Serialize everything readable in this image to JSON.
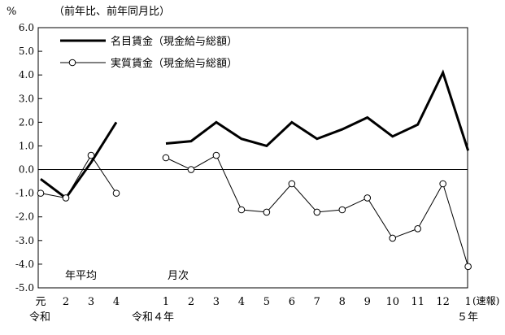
{
  "chart_data": {
    "type": "line",
    "unit_label": "%",
    "unit_note": "（前年比、前年同月比）",
    "ylim": [
      -5.0,
      6.0
    ],
    "y_ticks": [
      "6.0",
      "5.0",
      "4.0",
      "3.0",
      "2.0",
      "1.0",
      "0.0",
      "-1.0",
      "-2.0",
      "-3.0",
      "-4.0",
      "-5.0"
    ],
    "grid": false,
    "legend_position": "top-left",
    "panels": [
      {
        "name": "年平均",
        "categories": [
          "元",
          "2",
          "3",
          "4"
        ],
        "era_label": "令和",
        "series": [
          {
            "name": "名目賃金（現金給与総額）",
            "values": [
              -0.4,
              -1.2,
              0.3,
              2.0
            ]
          },
          {
            "name": "実質賃金（現金給与総額）",
            "values": [
              -1.0,
              -1.2,
              0.6,
              -1.0
            ]
          }
        ]
      },
      {
        "name": "月次",
        "categories": [
          "1",
          "2",
          "3",
          "4",
          "5",
          "6",
          "7",
          "8",
          "9",
          "10",
          "11",
          "12",
          "1"
        ],
        "era_label": "令和４年",
        "era_label_end": "５年",
        "last_note": "(速報)",
        "series": [
          {
            "name": "名目賃金（現金給与総額）",
            "values": [
              1.1,
              1.2,
              2.0,
              1.3,
              1.0,
              2.0,
              1.3,
              1.7,
              2.2,
              1.4,
              1.9,
              4.1,
              0.8
            ]
          },
          {
            "name": "実質賃金（現金給与総額）",
            "values": [
              0.5,
              0.0,
              0.6,
              -1.7,
              -1.8,
              -0.6,
              -1.8,
              -1.7,
              -1.2,
              -2.9,
              -2.5,
              -0.6,
              -4.1
            ]
          }
        ]
      }
    ],
    "legend": [
      {
        "name": "名目賃金（現金給与総額）",
        "style": "solid-thick"
      },
      {
        "name": "実質賃金（現金給与総額）",
        "style": "thin-circle-markers"
      }
    ]
  }
}
